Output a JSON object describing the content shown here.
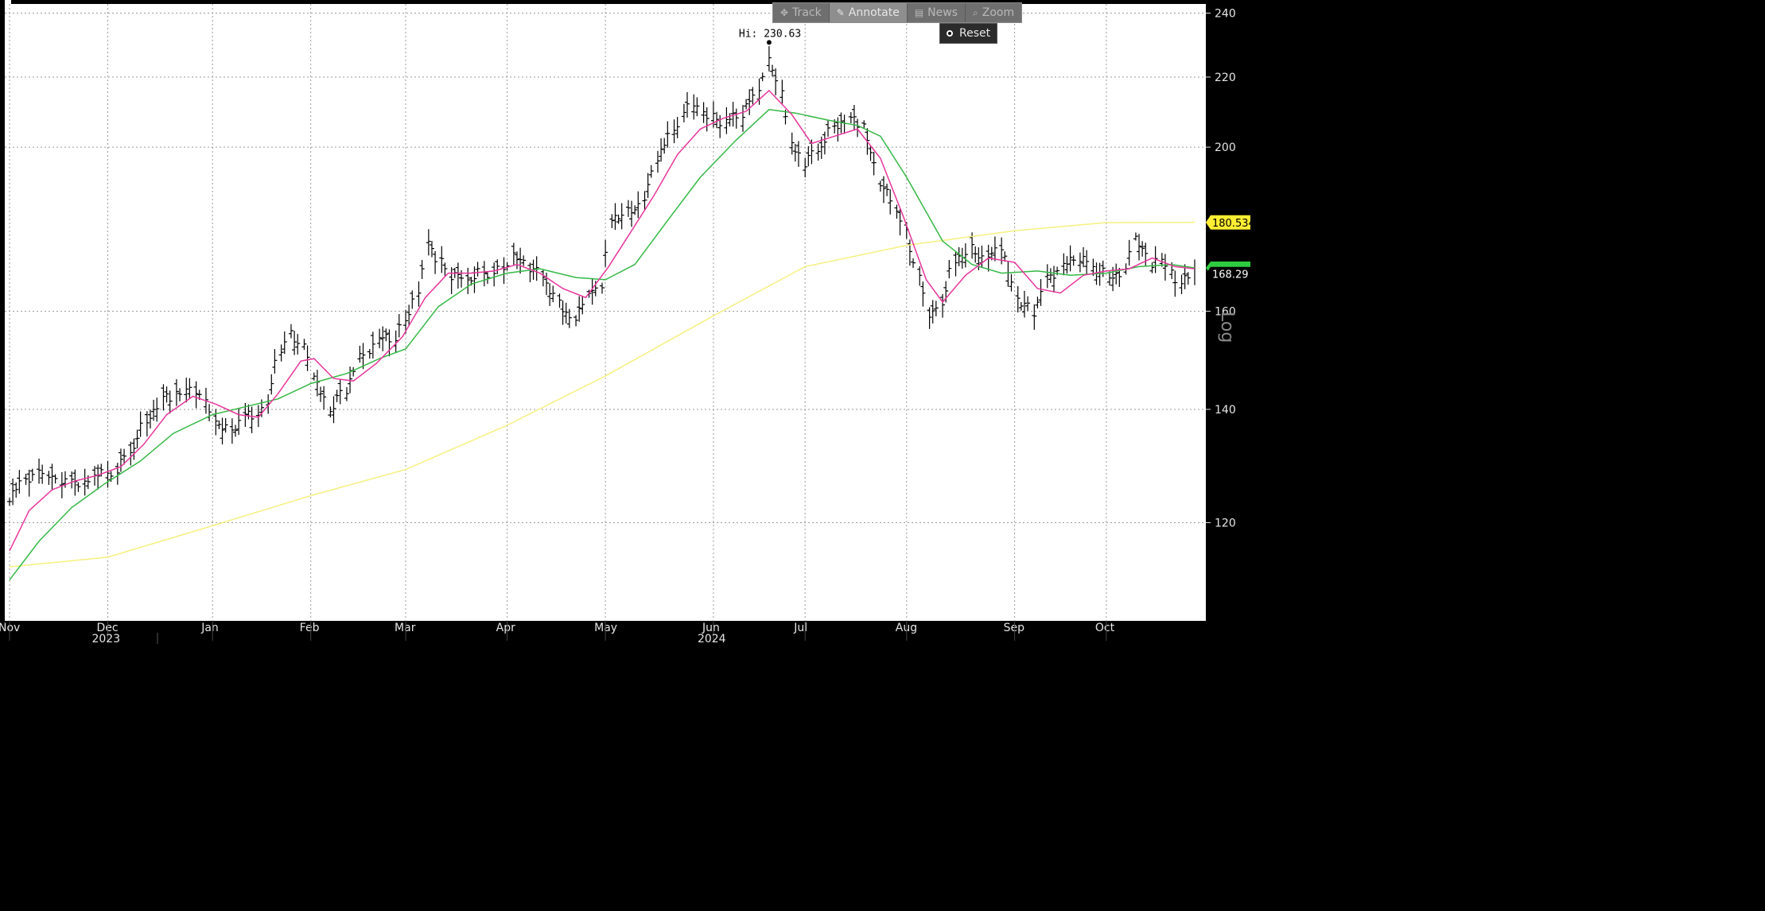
{
  "toolbar": {
    "items": [
      {
        "label": "Track",
        "icon": "crosshair-icon",
        "glyph": "✥"
      },
      {
        "label": "Annotate",
        "icon": "pencil-icon",
        "glyph": "✎"
      },
      {
        "label": "News",
        "icon": "news-icon",
        "glyph": "▤"
      },
      {
        "label": "Zoom",
        "icon": "magnifier-icon",
        "glyph": "⌕"
      }
    ],
    "active": "Annotate",
    "reset_label": "Reset"
  },
  "colors": {
    "background": "#ffffff",
    "frame": "#000000",
    "price_bars": "#000000",
    "ma_fast": "#e8359c",
    "ma_medium": "#35b845",
    "ma_long": "#f5f080",
    "ma_long_tag": "#ffee33",
    "ma_medium_tag": "#2ecc40",
    "last_tag": "#000000",
    "grid": "#9a9a9a"
  },
  "chart_data": {
    "type": "line",
    "subtype": "ohlc-bar-with-moving-averages",
    "scale": "log",
    "ylim": [
      105,
      243
    ],
    "yticks": [
      120,
      140,
      160,
      200,
      220,
      240
    ],
    "y_axis_label": "Log",
    "grid": true,
    "x_range": [
      "2023-11-01",
      "2024-10-28"
    ],
    "month_labels": [
      "Nov",
      "Dec",
      "Jan",
      "Feb",
      "Mar",
      "Apr",
      "May",
      "Jun",
      "Jul",
      "Aug",
      "Sep",
      "Oct"
    ],
    "month_dates": [
      "2023-11-01",
      "2023-12-01",
      "2024-01-02",
      "2024-02-01",
      "2024-03-01",
      "2024-04-01",
      "2024-05-01",
      "2024-06-03",
      "2024-07-01",
      "2024-08-01",
      "2024-09-03",
      "2024-10-01"
    ],
    "year_labels": [
      {
        "text": "2023",
        "date": "2023-12-01"
      },
      {
        "text": "2024",
        "date": "2024-06-03"
      }
    ],
    "annotation": {
      "text": "Hi: 230.63",
      "date": "2024-06-20",
      "value": 230.63
    },
    "price_tags": [
      {
        "label": "180.534",
        "series": "ma_long",
        "value": 180.534
      },
      {
        "label": "168.29",
        "series": "last",
        "value": 168.29
      }
    ],
    "ma_medium_last": 169.7,
    "close_series": [
      [
        "2023-11-01",
        123.5
      ],
      [
        "2023-11-06",
        127.5
      ],
      [
        "2023-11-13",
        128.5
      ],
      [
        "2023-11-20",
        126.5
      ],
      [
        "2023-11-27",
        127.5
      ],
      [
        "2023-12-04",
        129
      ],
      [
        "2023-12-08",
        132
      ],
      [
        "2023-12-13",
        138
      ],
      [
        "2023-12-18",
        142
      ],
      [
        "2023-12-22",
        142.5
      ],
      [
        "2023-12-28",
        144
      ],
      [
        "2024-01-03",
        138
      ],
      [
        "2024-01-08",
        136
      ],
      [
        "2024-01-12",
        139
      ],
      [
        "2024-01-16",
        138
      ],
      [
        "2024-01-19",
        142
      ],
      [
        "2024-01-23",
        152
      ],
      [
        "2024-01-26",
        155
      ],
      [
        "2024-01-30",
        153
      ],
      [
        "2024-02-02",
        146
      ],
      [
        "2024-02-07",
        140
      ],
      [
        "2024-02-12",
        144
      ],
      [
        "2024-02-16",
        150
      ],
      [
        "2024-02-22",
        154
      ],
      [
        "2024-02-27",
        154
      ],
      [
        "2024-03-01",
        158
      ],
      [
        "2024-03-05",
        165
      ],
      [
        "2024-03-08",
        175
      ],
      [
        "2024-03-12",
        171
      ],
      [
        "2024-03-15",
        168
      ],
      [
        "2024-03-20",
        167
      ],
      [
        "2024-03-25",
        169
      ],
      [
        "2024-03-28",
        168
      ],
      [
        "2024-04-03",
        172
      ],
      [
        "2024-04-08",
        170
      ],
      [
        "2024-04-12",
        168
      ],
      [
        "2024-04-17",
        162
      ],
      [
        "2024-04-22",
        158
      ],
      [
        "2024-04-26",
        163
      ],
      [
        "2024-04-30",
        166
      ],
      [
        "2024-05-03",
        182
      ],
      [
        "2024-05-08",
        183
      ],
      [
        "2024-05-13",
        186
      ],
      [
        "2024-05-17",
        196
      ],
      [
        "2024-05-22",
        205
      ],
      [
        "2024-05-28",
        213
      ],
      [
        "2024-06-03",
        208
      ],
      [
        "2024-06-07",
        207
      ],
      [
        "2024-06-12",
        209
      ],
      [
        "2024-06-17",
        216
      ],
      [
        "2024-06-20",
        227
      ],
      [
        "2024-06-24",
        215
      ],
      [
        "2024-06-27",
        200
      ],
      [
        "2024-07-01",
        196
      ],
      [
        "2024-07-05",
        199
      ],
      [
        "2024-07-10",
        206
      ],
      [
        "2024-07-15",
        208
      ],
      [
        "2024-07-19",
        205
      ],
      [
        "2024-07-24",
        191
      ],
      [
        "2024-07-29",
        184
      ],
      [
        "2024-08-01",
        178
      ],
      [
        "2024-08-05",
        168
      ],
      [
        "2024-08-08",
        158
      ],
      [
        "2024-08-12",
        162
      ],
      [
        "2024-08-16",
        172
      ],
      [
        "2024-08-21",
        174
      ],
      [
        "2024-08-26",
        172
      ],
      [
        "2024-08-30",
        174
      ],
      [
        "2024-09-04",
        163
      ],
      [
        "2024-09-09",
        160
      ],
      [
        "2024-09-13",
        167
      ],
      [
        "2024-09-18",
        170
      ],
      [
        "2024-09-23",
        172
      ],
      [
        "2024-09-27",
        170
      ],
      [
        "2024-10-02",
        168
      ],
      [
        "2024-10-07",
        169
      ],
      [
        "2024-10-10",
        176
      ],
      [
        "2024-10-15",
        171
      ],
      [
        "2024-10-18",
        172
      ],
      [
        "2024-10-21",
        169
      ],
      [
        "2024-10-24",
        166
      ],
      [
        "2024-10-28",
        168.29
      ]
    ],
    "ma_fast": [
      [
        "2023-11-01",
        115.5
      ],
      [
        "2023-11-07",
        122
      ],
      [
        "2023-11-14",
        125.5
      ],
      [
        "2023-11-21",
        127
      ],
      [
        "2023-11-28",
        128
      ],
      [
        "2023-12-05",
        129.5
      ],
      [
        "2023-12-12",
        133.5
      ],
      [
        "2023-12-19",
        139
      ],
      [
        "2023-12-27",
        142.5
      ],
      [
        "2024-01-03",
        141
      ],
      [
        "2024-01-10",
        139
      ],
      [
        "2024-01-16",
        138.5
      ],
      [
        "2024-01-22",
        143
      ],
      [
        "2024-01-29",
        149.5
      ],
      [
        "2024-02-02",
        150
      ],
      [
        "2024-02-08",
        146
      ],
      [
        "2024-02-14",
        145.5
      ],
      [
        "2024-02-21",
        149
      ],
      [
        "2024-02-29",
        154.5
      ],
      [
        "2024-03-07",
        163
      ],
      [
        "2024-03-14",
        168.5
      ],
      [
        "2024-03-21",
        168.5
      ],
      [
        "2024-03-28",
        169
      ],
      [
        "2024-04-04",
        170.5
      ],
      [
        "2024-04-11",
        168.5
      ],
      [
        "2024-04-18",
        165
      ],
      [
        "2024-04-25",
        163
      ],
      [
        "2024-05-02",
        170
      ],
      [
        "2024-05-09",
        178.5
      ],
      [
        "2024-05-16",
        187.5
      ],
      [
        "2024-05-23",
        198
      ],
      [
        "2024-05-30",
        205
      ],
      [
        "2024-06-06",
        208
      ],
      [
        "2024-06-13",
        210
      ],
      [
        "2024-06-20",
        216
      ],
      [
        "2024-06-27",
        209
      ],
      [
        "2024-07-03",
        201
      ],
      [
        "2024-07-10",
        203
      ],
      [
        "2024-07-17",
        205
      ],
      [
        "2024-07-24",
        197
      ],
      [
        "2024-07-31",
        182
      ],
      [
        "2024-08-07",
        167
      ],
      [
        "2024-08-12",
        162
      ],
      [
        "2024-08-19",
        168
      ],
      [
        "2024-08-26",
        172
      ],
      [
        "2024-09-03",
        171
      ],
      [
        "2024-09-10",
        165
      ],
      [
        "2024-09-17",
        164
      ],
      [
        "2024-09-24",
        168
      ],
      [
        "2024-10-01",
        169
      ],
      [
        "2024-10-08",
        169.5
      ],
      [
        "2024-10-15",
        172
      ],
      [
        "2024-10-22",
        170
      ],
      [
        "2024-10-28",
        169.5
      ]
    ],
    "ma_medium": [
      [
        "2023-11-01",
        111
      ],
      [
        "2023-11-10",
        117
      ],
      [
        "2023-11-20",
        122.5
      ],
      [
        "2023-11-30",
        126.5
      ],
      [
        "2023-12-11",
        130.5
      ],
      [
        "2023-12-21",
        135.5
      ],
      [
        "2024-01-02",
        139
      ],
      [
        "2024-01-12",
        140.5
      ],
      [
        "2024-01-22",
        142
      ],
      [
        "2024-02-01",
        145
      ],
      [
        "2024-02-12",
        147
      ],
      [
        "2024-02-22",
        150
      ],
      [
        "2024-03-01",
        152
      ],
      [
        "2024-03-11",
        161
      ],
      [
        "2024-03-21",
        166
      ],
      [
        "2024-04-01",
        168.5
      ],
      [
        "2024-04-11",
        169.5
      ],
      [
        "2024-04-22",
        167.5
      ],
      [
        "2024-05-01",
        167
      ],
      [
        "2024-05-10",
        170.5
      ],
      [
        "2024-05-20",
        181
      ],
      [
        "2024-05-30",
        192
      ],
      [
        "2024-06-10",
        202
      ],
      [
        "2024-06-20",
        210.5
      ],
      [
        "2024-06-28",
        209.5
      ],
      [
        "2024-07-08",
        207.5
      ],
      [
        "2024-07-17",
        206
      ],
      [
        "2024-07-24",
        203
      ],
      [
        "2024-08-01",
        192
      ],
      [
        "2024-08-12",
        176
      ],
      [
        "2024-08-21",
        170.5
      ],
      [
        "2024-08-30",
        168.5
      ],
      [
        "2024-09-10",
        169
      ],
      [
        "2024-09-20",
        168
      ],
      [
        "2024-10-01",
        168.5
      ],
      [
        "2024-10-11",
        170
      ],
      [
        "2024-10-21",
        170.5
      ],
      [
        "2024-10-28",
        169.7
      ]
    ],
    "ma_long": [
      [
        "2023-11-01",
        113
      ],
      [
        "2023-12-01",
        114.5
      ],
      [
        "2024-01-02",
        119.5
      ],
      [
        "2024-02-01",
        124.5
      ],
      [
        "2024-03-01",
        129
      ],
      [
        "2024-04-01",
        137
      ],
      [
        "2024-05-01",
        146.5
      ],
      [
        "2024-06-03",
        159
      ],
      [
        "2024-07-01",
        170
      ],
      [
        "2024-08-01",
        175
      ],
      [
        "2024-09-03",
        178.5
      ],
      [
        "2024-10-01",
        180.5
      ],
      [
        "2024-10-28",
        180.534
      ]
    ]
  }
}
